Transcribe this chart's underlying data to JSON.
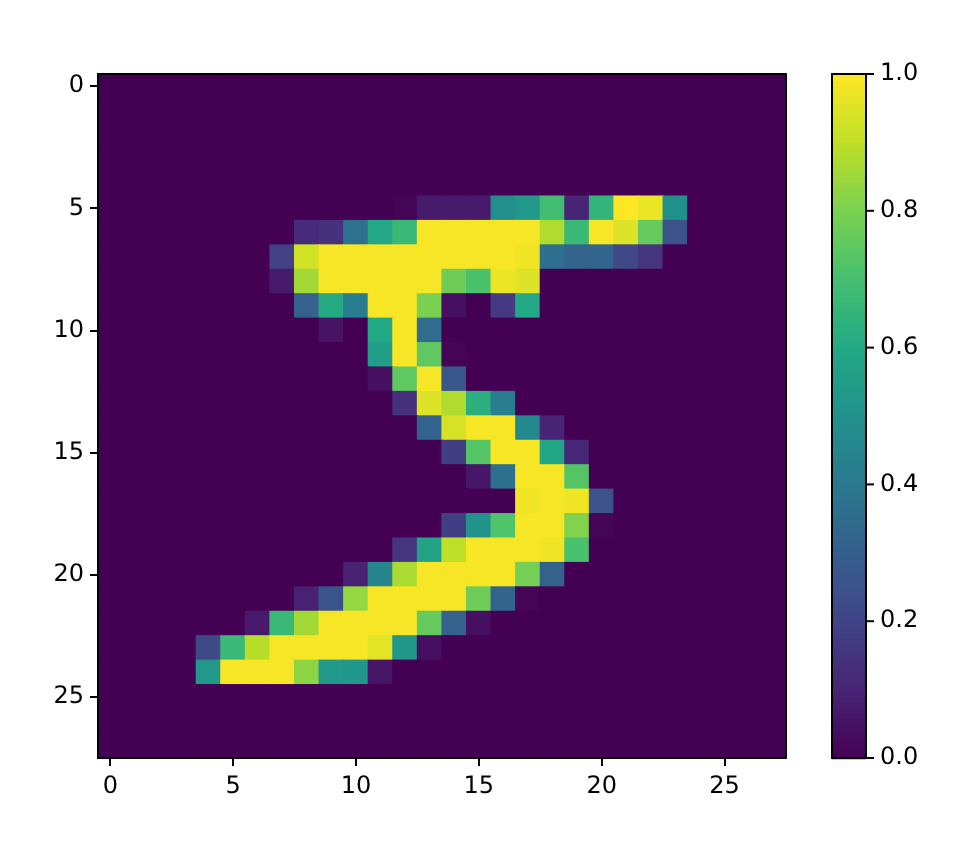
{
  "chart_data": {
    "type": "heatmap",
    "categories": [
      "0",
      null,
      null,
      null,
      null,
      "5",
      null,
      null,
      null,
      null,
      "10",
      null,
      null,
      null,
      null,
      "15",
      null,
      null,
      null,
      null,
      "20",
      null,
      null,
      null,
      null,
      "25",
      null,
      null
    ],
    "y_categories": [
      "0",
      null,
      null,
      null,
      null,
      "5",
      null,
      null,
      null,
      null,
      "10",
      null,
      null,
      null,
      null,
      "15",
      null,
      null,
      null,
      null,
      "20",
      null,
      null,
      null,
      null,
      "25",
      null,
      null
    ],
    "cells": [
      [
        0,
        0,
        0,
        0,
        0,
        0,
        0,
        0,
        0,
        0,
        0,
        0,
        0,
        0,
        0,
        0,
        0,
        0,
        0,
        0,
        0,
        0,
        0,
        0,
        0,
        0,
        0,
        0
      ],
      [
        0,
        0,
        0,
        0,
        0,
        0,
        0,
        0,
        0,
        0,
        0,
        0,
        0,
        0,
        0,
        0,
        0,
        0,
        0,
        0,
        0,
        0,
        0,
        0,
        0,
        0,
        0,
        0
      ],
      [
        0,
        0,
        0,
        0,
        0,
        0,
        0,
        0,
        0,
        0,
        0,
        0,
        0,
        0,
        0,
        0,
        0,
        0,
        0,
        0,
        0,
        0,
        0,
        0,
        0,
        0,
        0,
        0
      ],
      [
        0,
        0,
        0,
        0,
        0,
        0,
        0,
        0,
        0,
        0,
        0,
        0,
        0,
        0,
        0,
        0,
        0,
        0,
        0,
        0,
        0,
        0,
        0,
        0,
        0,
        0,
        0,
        0
      ],
      [
        0,
        0,
        0,
        0,
        0,
        0,
        0,
        0,
        0,
        0,
        0,
        0,
        0,
        0,
        0,
        0,
        0,
        0,
        0,
        0,
        0,
        0,
        0,
        0,
        0,
        0,
        0,
        0
      ],
      [
        0,
        0,
        0,
        0,
        0,
        0,
        0,
        0,
        0,
        0,
        0,
        0,
        0.01,
        0.07,
        0.07,
        0.07,
        0.49,
        0.53,
        0.69,
        0.1,
        0.65,
        1,
        0.97,
        0.5,
        0,
        0,
        0,
        0
      ],
      [
        0,
        0,
        0,
        0,
        0,
        0,
        0,
        0,
        0.12,
        0.14,
        0.37,
        0.6,
        0.67,
        0.99,
        0.99,
        0.99,
        0.99,
        0.99,
        0.88,
        0.67,
        0.99,
        0.95,
        0.76,
        0.25,
        0,
        0,
        0,
        0
      ],
      [
        0,
        0,
        0,
        0,
        0,
        0,
        0,
        0.19,
        0.93,
        0.99,
        0.99,
        0.99,
        0.99,
        0.99,
        0.99,
        0.99,
        0.99,
        0.98,
        0.36,
        0.32,
        0.32,
        0.22,
        0.15,
        0,
        0,
        0,
        0,
        0
      ],
      [
        0,
        0,
        0,
        0,
        0,
        0,
        0,
        0.07,
        0.86,
        0.99,
        0.99,
        0.99,
        0.99,
        0.99,
        0.78,
        0.71,
        0.97,
        0.95,
        0,
        0,
        0,
        0,
        0,
        0,
        0,
        0,
        0,
        0
      ],
      [
        0,
        0,
        0,
        0,
        0,
        0,
        0,
        0,
        0.31,
        0.61,
        0.42,
        0.99,
        0.99,
        0.8,
        0.04,
        0,
        0.17,
        0.6,
        0,
        0,
        0,
        0,
        0,
        0,
        0,
        0,
        0,
        0
      ],
      [
        0,
        0,
        0,
        0,
        0,
        0,
        0,
        0,
        0,
        0.05,
        0,
        0.6,
        0.99,
        0.35,
        0,
        0,
        0,
        0,
        0,
        0,
        0,
        0,
        0,
        0,
        0,
        0,
        0,
        0
      ],
      [
        0,
        0,
        0,
        0,
        0,
        0,
        0,
        0,
        0,
        0,
        0,
        0.55,
        0.99,
        0.75,
        0.01,
        0,
        0,
        0,
        0,
        0,
        0,
        0,
        0,
        0,
        0,
        0,
        0,
        0
      ],
      [
        0,
        0,
        0,
        0,
        0,
        0,
        0,
        0,
        0,
        0,
        0,
        0.04,
        0.75,
        0.99,
        0.27,
        0,
        0,
        0,
        0,
        0,
        0,
        0,
        0,
        0,
        0,
        0,
        0,
        0
      ],
      [
        0,
        0,
        0,
        0,
        0,
        0,
        0,
        0,
        0,
        0,
        0,
        0,
        0.14,
        0.95,
        0.88,
        0.63,
        0.42,
        0,
        0,
        0,
        0,
        0,
        0,
        0,
        0,
        0,
        0,
        0
      ],
      [
        0,
        0,
        0,
        0,
        0,
        0,
        0,
        0,
        0,
        0,
        0,
        0,
        0,
        0.32,
        0.94,
        0.99,
        0.99,
        0.47,
        0.1,
        0,
        0,
        0,
        0,
        0,
        0,
        0,
        0,
        0
      ],
      [
        0,
        0,
        0,
        0,
        0,
        0,
        0,
        0,
        0,
        0,
        0,
        0,
        0,
        0,
        0.18,
        0.73,
        0.99,
        0.99,
        0.59,
        0.11,
        0,
        0,
        0,
        0,
        0,
        0,
        0,
        0
      ],
      [
        0,
        0,
        0,
        0,
        0,
        0,
        0,
        0,
        0,
        0,
        0,
        0,
        0,
        0,
        0,
        0.06,
        0.36,
        0.99,
        0.99,
        0.73,
        0,
        0,
        0,
        0,
        0,
        0,
        0,
        0
      ],
      [
        0,
        0,
        0,
        0,
        0,
        0,
        0,
        0,
        0,
        0,
        0,
        0,
        0,
        0,
        0,
        0,
        0,
        0.98,
        0.99,
        0.98,
        0.25,
        0,
        0,
        0,
        0,
        0,
        0,
        0
      ],
      [
        0,
        0,
        0,
        0,
        0,
        0,
        0,
        0,
        0,
        0,
        0,
        0,
        0,
        0,
        0.18,
        0.51,
        0.72,
        0.99,
        0.99,
        0.81,
        0.01,
        0,
        0,
        0,
        0,
        0,
        0,
        0
      ],
      [
        0,
        0,
        0,
        0,
        0,
        0,
        0,
        0,
        0,
        0,
        0,
        0,
        0.15,
        0.58,
        0.9,
        0.99,
        0.99,
        0.99,
        0.98,
        0.71,
        0,
        0,
        0,
        0,
        0,
        0,
        0,
        0
      ],
      [
        0,
        0,
        0,
        0,
        0,
        0,
        0,
        0,
        0,
        0,
        0.09,
        0.45,
        0.87,
        0.99,
        0.99,
        0.99,
        0.99,
        0.79,
        0.31,
        0,
        0,
        0,
        0,
        0,
        0,
        0,
        0,
        0
      ],
      [
        0,
        0,
        0,
        0,
        0,
        0,
        0,
        0,
        0.09,
        0.26,
        0.84,
        0.99,
        0.99,
        0.99,
        0.99,
        0.78,
        0.32,
        0.01,
        0,
        0,
        0,
        0,
        0,
        0,
        0,
        0,
        0,
        0
      ],
      [
        0,
        0,
        0,
        0,
        0,
        0,
        0.07,
        0.67,
        0.86,
        0.99,
        0.99,
        0.99,
        0.99,
        0.76,
        0.31,
        0.04,
        0,
        0,
        0,
        0,
        0,
        0,
        0,
        0,
        0,
        0,
        0,
        0
      ],
      [
        0,
        0,
        0,
        0,
        0.22,
        0.67,
        0.89,
        0.99,
        0.99,
        0.99,
        0.99,
        0.96,
        0.52,
        0.04,
        0,
        0,
        0,
        0,
        0,
        0,
        0,
        0,
        0,
        0,
        0,
        0,
        0,
        0
      ],
      [
        0,
        0,
        0,
        0,
        0.53,
        0.99,
        0.99,
        0.99,
        0.83,
        0.53,
        0.52,
        0.06,
        0,
        0,
        0,
        0,
        0,
        0,
        0,
        0,
        0,
        0,
        0,
        0,
        0,
        0,
        0,
        0
      ],
      [
        0,
        0,
        0,
        0,
        0,
        0,
        0,
        0,
        0,
        0,
        0,
        0,
        0,
        0,
        0,
        0,
        0,
        0,
        0,
        0,
        0,
        0,
        0,
        0,
        0,
        0,
        0,
        0
      ],
      [
        0,
        0,
        0,
        0,
        0,
        0,
        0,
        0,
        0,
        0,
        0,
        0,
        0,
        0,
        0,
        0,
        0,
        0,
        0,
        0,
        0,
        0,
        0,
        0,
        0,
        0,
        0,
        0
      ],
      [
        0,
        0,
        0,
        0,
        0,
        0,
        0,
        0,
        0,
        0,
        0,
        0,
        0,
        0,
        0,
        0,
        0,
        0,
        0,
        0,
        0,
        0,
        0,
        0,
        0,
        0,
        0,
        0
      ]
    ],
    "clim": [
      0,
      1
    ],
    "cticks": [
      {
        "value": 0,
        "label": "0.0"
      },
      0.2,
      0.4,
      0.6,
      0.8,
      {
        "value": 1,
        "label": "1.0"
      }
    ]
  }
}
